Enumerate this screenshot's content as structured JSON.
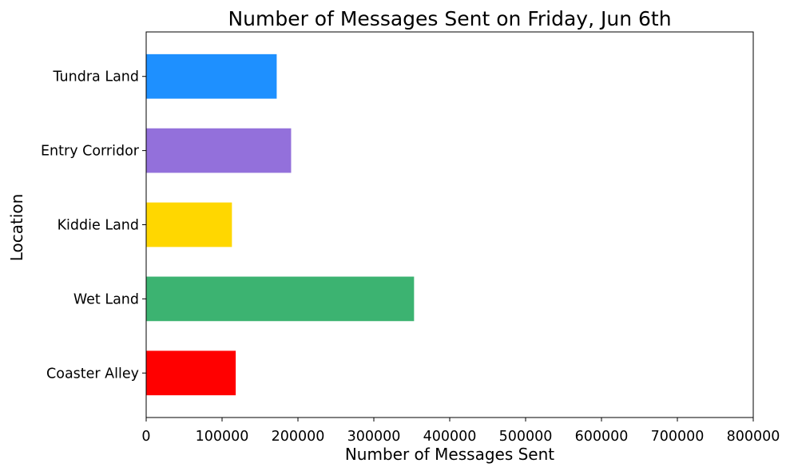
{
  "chart_data": {
    "type": "bar",
    "orientation": "horizontal",
    "title": "Number of Messages Sent on Friday, Jun 6th",
    "xlabel": "Number of Messages Sent",
    "ylabel": "Location",
    "categories": [
      "Coaster Alley",
      "Wet Land",
      "Kiddie Land",
      "Entry Corridor",
      "Tundra Land"
    ],
    "values": [
      118000,
      353000,
      113000,
      191000,
      172000
    ],
    "colors": [
      "#ff0000",
      "#3cb371",
      "#ffd700",
      "#9370db",
      "#1e90ff"
    ],
    "xlim": [
      0,
      800000
    ],
    "xticks": [
      0,
      100000,
      200000,
      300000,
      400000,
      500000,
      600000,
      700000,
      800000
    ],
    "xtick_labels": [
      "0",
      "100000",
      "200000",
      "300000",
      "400000",
      "500000",
      "600000",
      "700000",
      "800000"
    ],
    "grid": false,
    "legend": "none"
  }
}
